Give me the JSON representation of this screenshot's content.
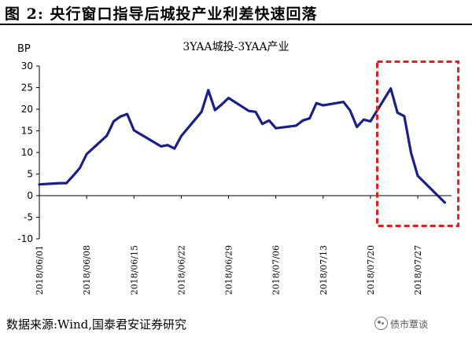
{
  "figure_title": "图 2: 央行窗口指导后城投产业利差快速回落",
  "source": "数据来源:Wind,国泰君安证券研究",
  "watermark": "债市覃谈",
  "colors": {
    "line": "#1b1f8a",
    "highlight_box": "#e02020",
    "axis": "#000000"
  },
  "chart_data": {
    "type": "line",
    "title": "3YAA城投-3YAA产业",
    "ylabel": "BP",
    "ylim": [
      -10,
      30
    ],
    "yticks": [
      30,
      25,
      20,
      15,
      10,
      5,
      0,
      -5,
      -10
    ],
    "xrange": [
      "2018-06-01",
      "2018-08-01"
    ],
    "xticks": [
      "2018/06/01",
      "2018/06/08",
      "2018/06/15",
      "2018/06/22",
      "2018/06/29",
      "2018/07/06",
      "2018/07/13",
      "2018/07/20",
      "2018/07/27"
    ],
    "grid": false,
    "legend": "none",
    "highlight": {
      "from": "2018-07-21",
      "to": "2018-08-02",
      "ymin": -7,
      "ymax": 31
    },
    "series": [
      {
        "x": [
          "2018-06-01",
          "2018-06-04",
          "2018-06-05",
          "2018-06-06",
          "2018-06-07",
          "2018-06-08",
          "2018-06-11",
          "2018-06-12",
          "2018-06-13",
          "2018-06-14",
          "2018-06-15",
          "2018-06-19",
          "2018-06-20",
          "2018-06-21",
          "2018-06-22",
          "2018-06-25",
          "2018-06-26",
          "2018-06-27",
          "2018-06-28",
          "2018-06-29",
          "2018-07-02",
          "2018-07-03",
          "2018-07-04",
          "2018-07-05",
          "2018-07-06",
          "2018-07-09",
          "2018-07-10",
          "2018-07-11",
          "2018-07-12",
          "2018-07-13",
          "2018-07-16",
          "2018-07-17",
          "2018-07-18",
          "2018-07-19",
          "2018-07-20",
          "2018-07-23",
          "2018-07-24",
          "2018-07-25",
          "2018-07-26",
          "2018-07-27",
          "2018-07-31"
        ],
        "values": [
          2.6,
          2.9,
          2.9,
          4.6,
          6.4,
          9.6,
          13.9,
          17.2,
          18.3,
          18.9,
          15.1,
          11.4,
          11.7,
          10.9,
          13.8,
          19.4,
          24.4,
          19.8,
          21.1,
          22.6,
          19.6,
          19.4,
          16.6,
          17.4,
          15.6,
          16.2,
          17.4,
          17.9,
          21.4,
          20.9,
          21.7,
          19.7,
          15.9,
          17.6,
          17.2,
          24.8,
          19.2,
          18.4,
          9.9,
          4.6,
          -1.6
        ]
      }
    ]
  }
}
